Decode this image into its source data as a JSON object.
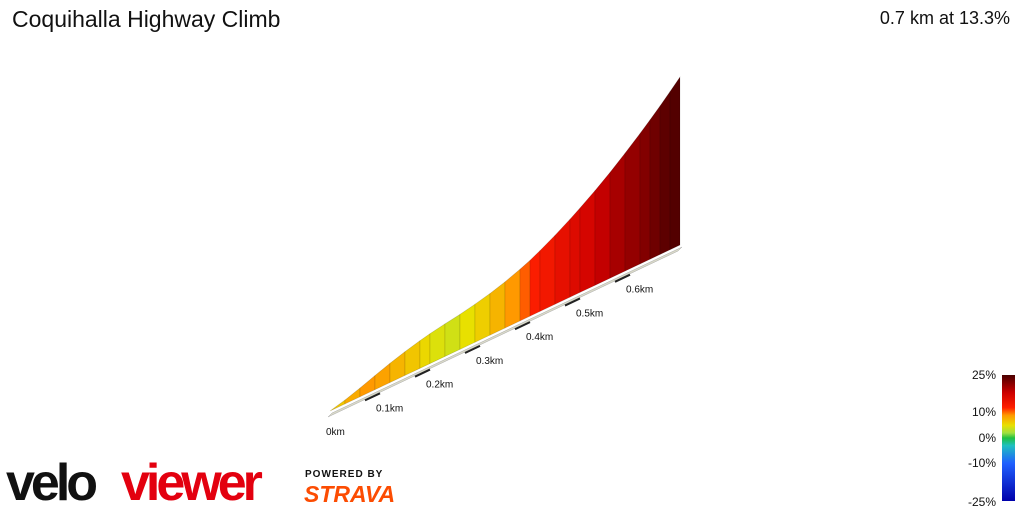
{
  "header": {
    "title": "Coquihalla Highway Climb",
    "summary": "0.7 km at 13.3%"
  },
  "branding": {
    "logo_text_1": "velo",
    "logo_text_2": "viewer",
    "powered_by": "POWERED BY",
    "strava": "STRAVA"
  },
  "legend": {
    "labels": [
      "25%",
      "10%",
      "0%",
      "-10%",
      "-25%"
    ],
    "stops": [
      {
        "pct": 25,
        "color": "#4a0000"
      },
      {
        "pct": 18,
        "color": "#cc0000"
      },
      {
        "pct": 12,
        "color": "#ff2000"
      },
      {
        "pct": 9,
        "color": "#ff9900"
      },
      {
        "pct": 5,
        "color": "#e8e000"
      },
      {
        "pct": 2,
        "color": "#a0e040"
      },
      {
        "pct": 0,
        "color": "#20c040"
      },
      {
        "pct": -3,
        "color": "#20c0c0"
      },
      {
        "pct": -10,
        "color": "#2060ff"
      },
      {
        "pct": -25,
        "color": "#0000aa"
      }
    ]
  },
  "chart_data": {
    "type": "area",
    "xunit": "km",
    "tick_labels": [
      "0km",
      "0.1km",
      "0.2km",
      "0.3km",
      "0.4km",
      "0.5km",
      "0.6km"
    ],
    "ticks": [
      0,
      0.1,
      0.2,
      0.3,
      0.4,
      0.5,
      0.6
    ],
    "x": [
      0,
      0.03,
      0.06,
      0.09,
      0.12,
      0.15,
      0.18,
      0.2,
      0.23,
      0.26,
      0.29,
      0.32,
      0.35,
      0.38,
      0.4,
      0.42,
      0.45,
      0.48,
      0.5,
      0.53,
      0.56,
      0.59,
      0.62,
      0.64,
      0.66,
      0.68,
      0.7
    ],
    "gradient": [
      3.0,
      6.5,
      8.0,
      9.0,
      8.5,
      7.5,
      6.5,
      5.5,
      4.5,
      4.0,
      5.0,
      6.0,
      7.5,
      9.0,
      10.5,
      12.5,
      13.5,
      15.0,
      16.0,
      17.0,
      18.5,
      20.0,
      21.0,
      22.0,
      23.0,
      24.0,
      24.5
    ],
    "xlim": [
      0,
      0.7
    ],
    "clim": [
      -25,
      25
    ]
  }
}
